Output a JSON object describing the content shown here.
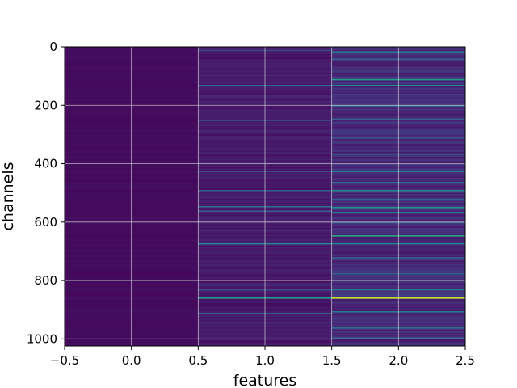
{
  "chart_data": {
    "type": "heatmap",
    "title": "",
    "xlabel": "features",
    "ylabel": "channels",
    "xlim": [
      -0.5,
      2.5
    ],
    "ylim": [
      1024,
      0
    ],
    "x_ticks": [
      -0.5,
      0.0,
      0.5,
      1.0,
      1.5,
      2.0,
      2.5
    ],
    "x_tick_labels": [
      "−0.5",
      "0.0",
      "0.5",
      "1.0",
      "1.5",
      "2.0",
      "2.5"
    ],
    "y_ticks": [
      0,
      200,
      400,
      600,
      800,
      1000
    ],
    "y_tick_labels": [
      "0",
      "200",
      "400",
      "600",
      "800",
      "1000"
    ],
    "grid": true,
    "colormap": "viridis",
    "columns": [
      0,
      1,
      2
    ],
    "n_channels": 1024,
    "base_levels": [
      0.03,
      0.07,
      0.12
    ],
    "highlights": [
      {
        "column": 1,
        "channel": 10,
        "value": 0.22
      },
      {
        "column": 1,
        "channel": 130,
        "value": 0.32
      },
      {
        "column": 1,
        "channel": 250,
        "value": 0.22
      },
      {
        "column": 1,
        "channel": 425,
        "value": 0.22
      },
      {
        "column": 1,
        "channel": 490,
        "value": 0.3
      },
      {
        "column": 1,
        "channel": 545,
        "value": 0.35
      },
      {
        "column": 1,
        "channel": 560,
        "value": 0.28
      },
      {
        "column": 1,
        "channel": 672,
        "value": 0.42
      },
      {
        "column": 1,
        "channel": 830,
        "value": 0.22
      },
      {
        "column": 1,
        "channel": 858,
        "value": 0.55
      },
      {
        "column": 1,
        "channel": 910,
        "value": 0.28
      },
      {
        "column": 2,
        "channel": 15,
        "value": 0.4
      },
      {
        "column": 2,
        "channel": 40,
        "value": 0.3
      },
      {
        "column": 2,
        "channel": 110,
        "value": 0.55
      },
      {
        "column": 2,
        "channel": 130,
        "value": 0.45
      },
      {
        "column": 2,
        "channel": 200,
        "value": 0.35
      },
      {
        "column": 2,
        "channel": 245,
        "value": 0.3
      },
      {
        "column": 2,
        "channel": 310,
        "value": 0.25
      },
      {
        "column": 2,
        "channel": 365,
        "value": 0.35
      },
      {
        "column": 2,
        "channel": 425,
        "value": 0.4
      },
      {
        "column": 2,
        "channel": 462,
        "value": 0.35
      },
      {
        "column": 2,
        "channel": 490,
        "value": 0.45
      },
      {
        "column": 2,
        "channel": 520,
        "value": 0.3
      },
      {
        "column": 2,
        "channel": 548,
        "value": 0.5
      },
      {
        "column": 2,
        "channel": 565,
        "value": 0.45
      },
      {
        "column": 2,
        "channel": 600,
        "value": 0.3
      },
      {
        "column": 2,
        "channel": 645,
        "value": 0.6
      },
      {
        "column": 2,
        "channel": 672,
        "value": 0.45
      },
      {
        "column": 2,
        "channel": 720,
        "value": 0.3
      },
      {
        "column": 2,
        "channel": 775,
        "value": 0.3
      },
      {
        "column": 2,
        "channel": 830,
        "value": 0.4
      },
      {
        "column": 2,
        "channel": 858,
        "value": 0.92
      },
      {
        "column": 2,
        "channel": 905,
        "value": 0.4
      },
      {
        "column": 2,
        "channel": 960,
        "value": 0.35
      },
      {
        "column": 2,
        "channel": 995,
        "value": 0.3
      }
    ]
  }
}
